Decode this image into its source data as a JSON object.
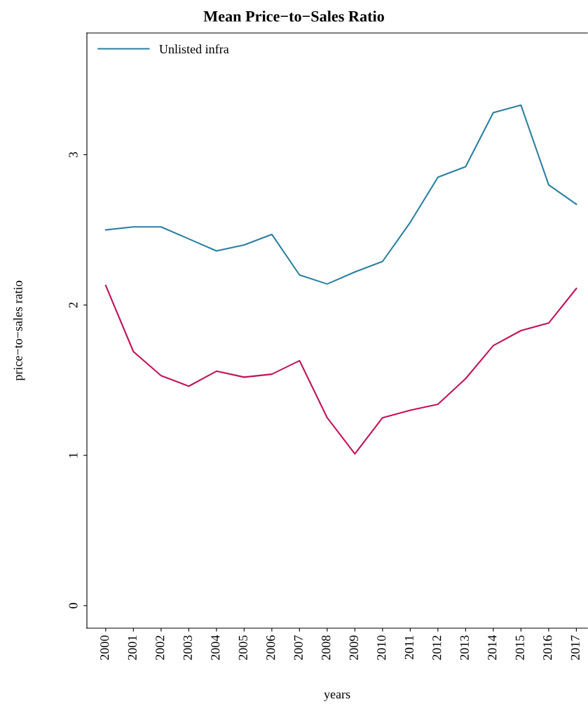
{
  "chart_data": {
    "type": "line",
    "title": "Mean Price−to−Sales Ratio",
    "xlabel": "years",
    "ylabel": "price−to−sales ratio",
    "categories": [
      "2000",
      "2001",
      "2002",
      "2003",
      "2004",
      "2005",
      "2006",
      "2007",
      "2008",
      "2009",
      "2010",
      "2011",
      "2012",
      "2013",
      "2014",
      "2015",
      "2016",
      "2017"
    ],
    "series": [
      {
        "name": "Unlisted infra",
        "color": "#2a7fa0",
        "values": [
          2.5,
          2.52,
          2.52,
          2.44,
          2.36,
          2.4,
          2.47,
          2.2,
          2.14,
          2.22,
          2.29,
          2.55,
          2.85,
          2.92,
          3.28,
          3.33,
          2.8,
          2.67
        ]
      },
      {
        "color": "#c0135a",
        "values": [
          2.13,
          1.69,
          1.53,
          1.46,
          1.56,
          1.52,
          1.54,
          1.63,
          1.25,
          1.01,
          1.25,
          1.3,
          1.34,
          1.51,
          1.73,
          1.83,
          1.88,
          2.11
        ]
      }
    ],
    "ylim": [
      -0.15,
      3.81
    ],
    "yticks": [
      0,
      1,
      2,
      3
    ],
    "grid": false,
    "legend": "top left"
  }
}
